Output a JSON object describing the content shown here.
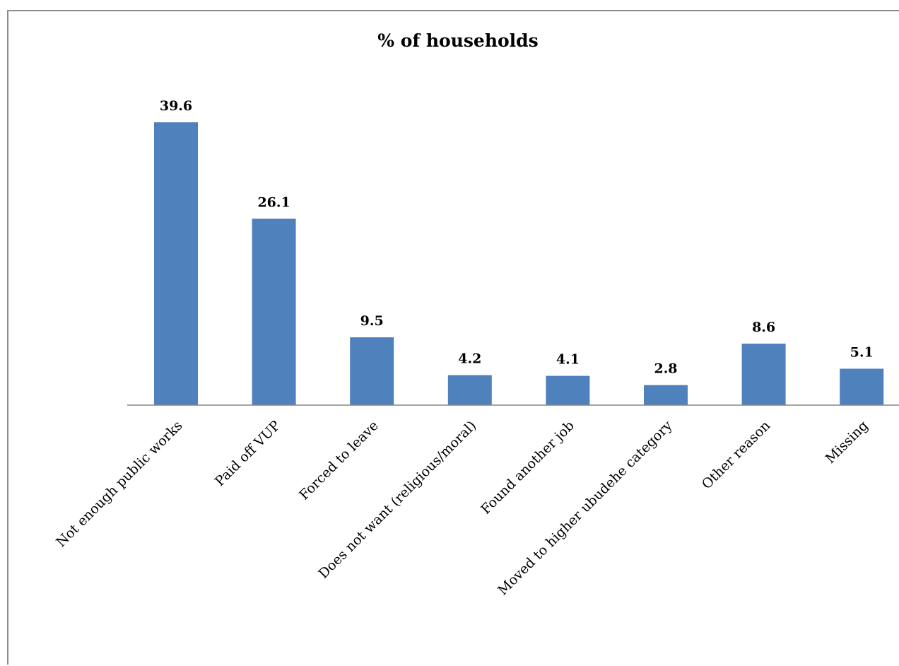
{
  "chart_data": {
    "type": "bar",
    "title": "% of households",
    "categories": [
      "Not enough public works",
      "Paid off VUP",
      "Forced to leave",
      "Does not want (religious/moral)",
      "Found another job",
      "Moved to higher ubudehe category",
      "Other reason",
      "Missing"
    ],
    "values": [
      39.6,
      26.1,
      9.5,
      4.2,
      4.1,
      2.8,
      8.6,
      5.1
    ],
    "data_labels": [
      "39.6",
      "26.1",
      "9.5",
      "4.2",
      "4.1",
      "2.8",
      "8.6",
      "5.1"
    ],
    "xlabel": "",
    "ylabel": "",
    "ylim": [
      0,
      40
    ],
    "grid": false,
    "legend": "none",
    "bar_color": "#4f81bd"
  }
}
